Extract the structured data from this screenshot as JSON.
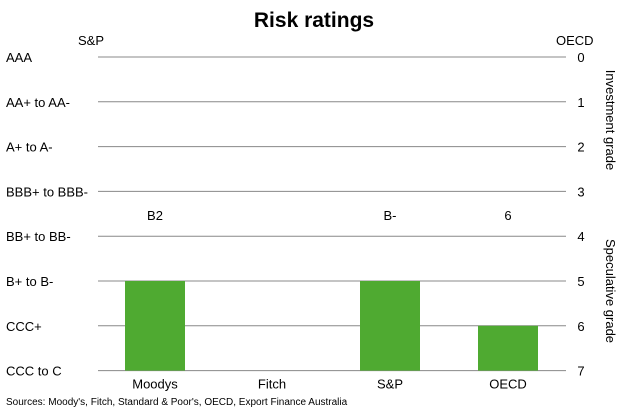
{
  "chart_data": {
    "type": "bar",
    "title": "Risk ratings",
    "categories": [
      "Moodys",
      "Fitch",
      "S&P",
      "OECD"
    ],
    "values": [
      5,
      null,
      5,
      6
    ],
    "data_labels": [
      "B2",
      "",
      "B-",
      "6"
    ],
    "left_axis": {
      "label": "S&P",
      "ticks": [
        "AAA",
        "AA+ to AA-",
        "A+ to A-",
        "BBB+ to BBB-",
        "BB+ to BB-",
        "B+ to B-",
        "CCC+",
        "CCC to C"
      ]
    },
    "right_axis": {
      "label": "OECD",
      "ticks": [
        "0",
        "1",
        "2",
        "3",
        "4",
        "5",
        "6",
        "7"
      ],
      "ylim": [
        0,
        7
      ],
      "inverted": true
    },
    "side_labels": [
      "Investment grade",
      "Speculative grade"
    ],
    "grid": true,
    "bar_color": "#4FAA31",
    "grid_color": "#888888"
  },
  "source": "Sources: Moody's, Fitch, Standard & Poor's, OECD, Export Finance Australia"
}
